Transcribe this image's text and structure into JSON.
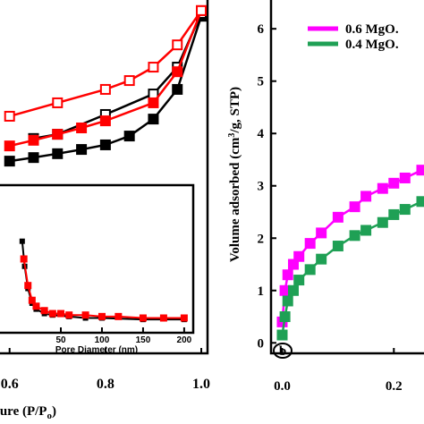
{
  "chart_data": [
    {
      "type": "line",
      "xlim": [
        0.58,
        1.013
      ],
      "ylim": [
        0,
        10
      ],
      "xticks": [
        0.6,
        0.8,
        {
          "value": 1,
          "label": "1.0"
        }
      ],
      "xlabel": "sure (P/P",
      "xlabel_sub": "o",
      "xlabel_end": ")",
      "series": [
        {
          "color": "#000000",
          "marker": "filled",
          "x": [
            0.6,
            0.65,
            0.7,
            0.75,
            0.8,
            0.85,
            0.9,
            0.95,
            1.0
          ],
          "values": [
            5.44,
            5.54,
            5.65,
            5.77,
            5.9,
            6.15,
            6.63,
            7.47,
            9.54
          ]
        },
        {
          "color": "#000000",
          "marker": "open",
          "x": [
            0.65,
            0.7,
            0.8,
            0.9,
            0.95,
            1.0
          ],
          "values": [
            6.08,
            6.2,
            6.76,
            7.34,
            8.1,
            9.62
          ]
        },
        {
          "color": "#ff0000",
          "marker": "filled",
          "x": [
            0.6,
            0.65,
            0.7,
            0.75,
            0.8,
            0.9,
            0.95,
            1.0
          ],
          "values": [
            5.87,
            6.03,
            6.2,
            6.38,
            6.58,
            7.09,
            7.97,
            9.7
          ]
        },
        {
          "color": "#ff0000",
          "marker": "open",
          "x": [
            0.6,
            0.7,
            0.8,
            0.85,
            0.9,
            0.95,
            1.0
          ],
          "values": [
            6.71,
            7.09,
            7.47,
            7.72,
            8.1,
            8.73,
            9.7
          ]
        }
      ]
    },
    {
      "type": "line",
      "xlim": [
        -24,
        211
      ],
      "ylim": [
        0,
        1
      ],
      "xticks": [
        50,
        100,
        150,
        200
      ],
      "xlabel": "Pore Diameter (nm)",
      "series": [
        {
          "color": "#000000",
          "marker": "small",
          "x": [
            3,
            6,
            10,
            15,
            20,
            30,
            40,
            60,
            80,
            100,
            150,
            200
          ],
          "values": [
            0.62,
            0.45,
            0.3,
            0.2,
            0.16,
            0.13,
            0.12,
            0.11,
            0.1,
            0.1,
            0.09,
            0.09
          ]
        },
        {
          "color": "#ff0000",
          "marker": "filled",
          "x": [
            5,
            10,
            15,
            20,
            30,
            40,
            50,
            60,
            80,
            100,
            120,
            150,
            175,
            200
          ],
          "values": [
            0.5,
            0.32,
            0.22,
            0.18,
            0.15,
            0.13,
            0.13,
            0.12,
            0.12,
            0.11,
            0.11,
            0.1,
            0.1,
            0.1
          ]
        }
      ]
    },
    {
      "type": "line",
      "xlim": [
        -0.02,
        0.254
      ],
      "ylim": [
        -0.2,
        6.55
      ],
      "xticks": [
        {
          "value": 0,
          "label": "0.0"
        },
        0.2
      ],
      "yticks": [
        0,
        1,
        2,
        3,
        4,
        5,
        6
      ],
      "ylabel": "Volume adsorbed (cm",
      "ylabel_sup": "3",
      "ylabel_end": "/g, STP)",
      "annotation": "b",
      "series": [
        {
          "name": "0.6 MgO.",
          "color": "#ff00ff",
          "marker": "filled",
          "x": [
            0,
            0.005,
            0.01,
            0.02,
            0.03,
            0.05,
            0.07,
            0.1,
            0.13,
            0.15,
            0.18,
            0.2,
            0.22,
            0.25
          ],
          "values": [
            0.4,
            1.0,
            1.3,
            1.5,
            1.65,
            1.9,
            2.1,
            2.4,
            2.6,
            2.8,
            2.95,
            3.05,
            3.15,
            3.3
          ]
        },
        {
          "name": "0.4 MgO.",
          "color": "#1fa055",
          "marker": "filled",
          "x": [
            0,
            0.005,
            0.01,
            0.02,
            0.03,
            0.05,
            0.07,
            0.1,
            0.13,
            0.15,
            0.18,
            0.2,
            0.22,
            0.25
          ],
          "values": [
            0.15,
            0.5,
            0.8,
            1.0,
            1.2,
            1.4,
            1.6,
            1.85,
            2.05,
            2.15,
            2.3,
            2.45,
            2.55,
            2.7
          ]
        }
      ]
    }
  ]
}
